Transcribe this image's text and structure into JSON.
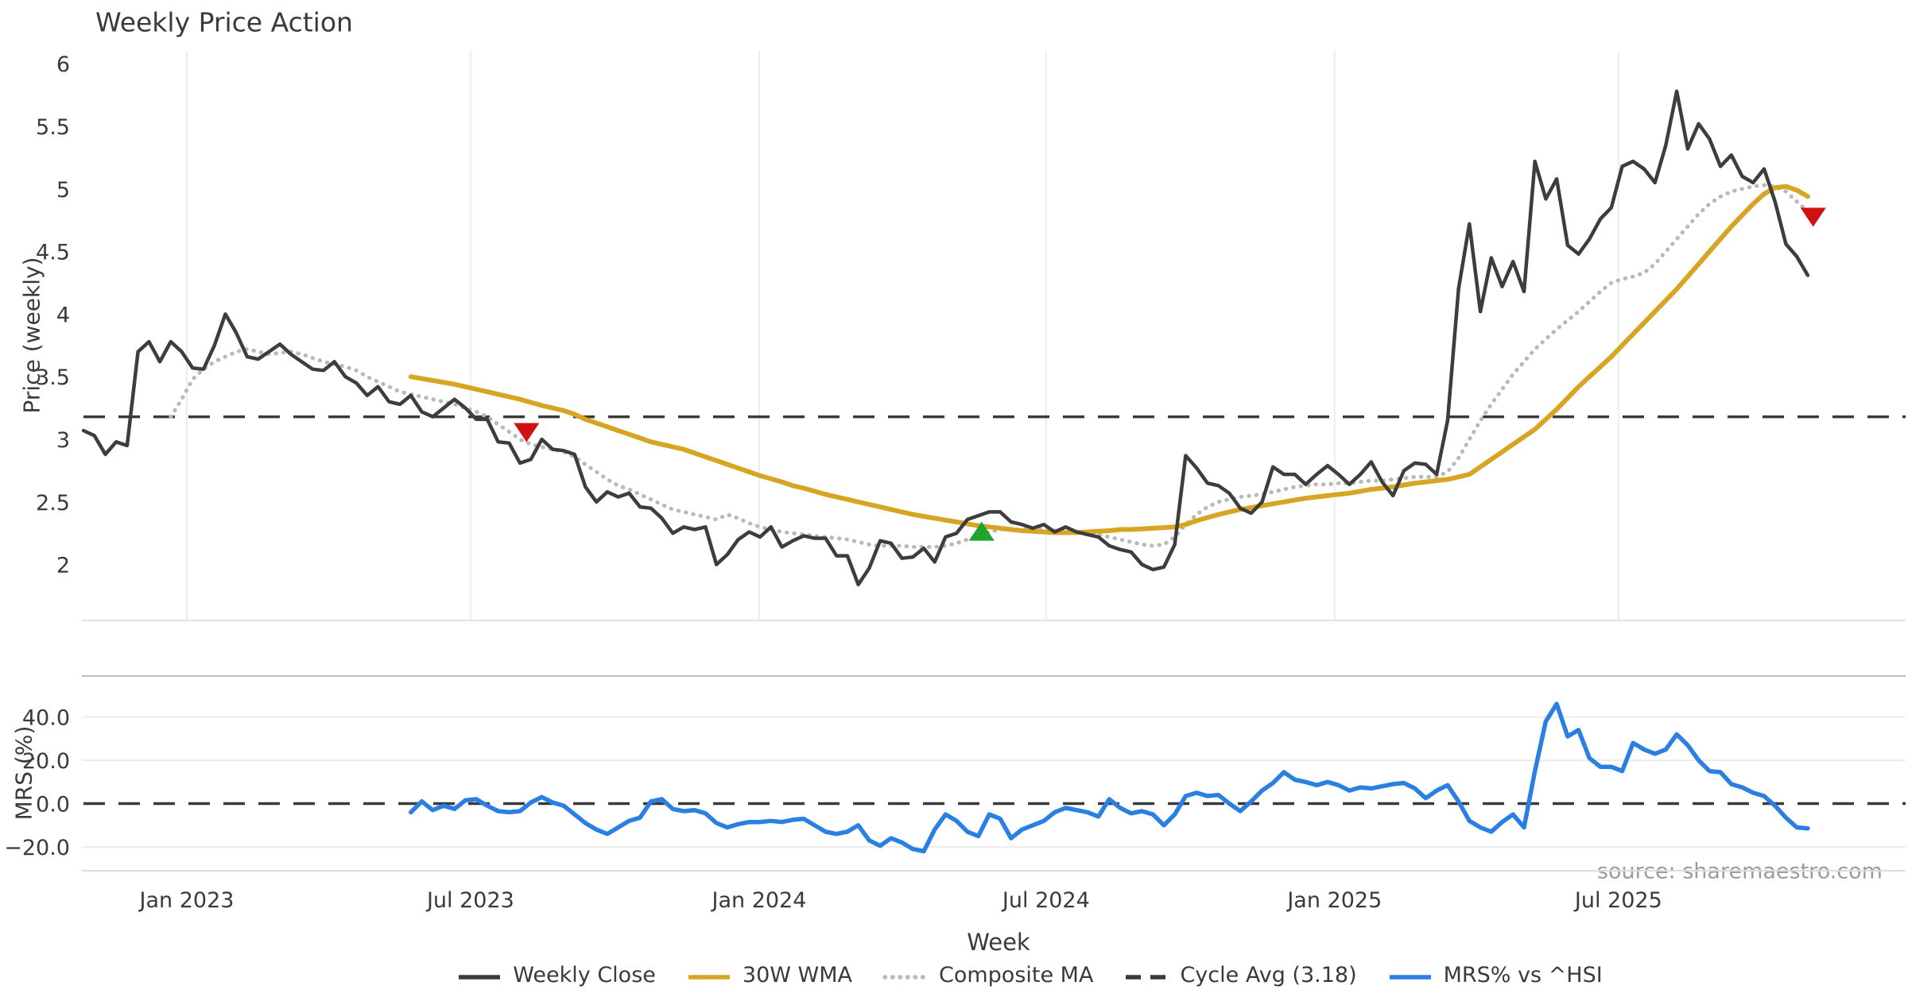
{
  "page": {
    "title": "Weekly Price Action"
  },
  "source": {
    "text": "source: sharemaestro.com"
  },
  "colors": {
    "weekly_close": "#3d3d3d",
    "wma": "#d7a521",
    "composite": "#b9b9b9",
    "cycle_avg": "#3a3a3a",
    "mrs": "#2a7fe3",
    "marker_red": "#cf1110",
    "marker_green": "#1fa32c",
    "grid": "#ededed",
    "panel_border": "#bdbdbd",
    "text": "#3a3a3a",
    "source_text": "#9b9b9b"
  },
  "legend": {
    "items": [
      {
        "label": "Weekly Close",
        "style": "solid",
        "color": "#3d3d3d"
      },
      {
        "label": "30W WMA",
        "style": "solid",
        "color": "#d7a521"
      },
      {
        "label": "Composite MA",
        "style": "dotted",
        "color": "#b9b9b9"
      },
      {
        "label": "Cycle Avg (3.18)",
        "style": "dashed",
        "color": "#3a3a3a"
      },
      {
        "label": "MRS% vs ^HSI",
        "style": "solid",
        "color": "#2a7fe3"
      }
    ]
  },
  "chart_data": [
    {
      "type": "line",
      "panel": "price",
      "title": "Weekly Price Action",
      "ylabel": "Price (weekly)",
      "xlabel": "Week",
      "ylim": [
        1.55,
        6.1
      ],
      "grid": "vertical",
      "x_ticks": [
        {
          "week": 9.47,
          "label": "Jan 2023"
        },
        {
          "week": 35.47,
          "label": "Jul 2023"
        },
        {
          "week": 61.92,
          "label": "Jan 2024"
        },
        {
          "week": 88.21,
          "label": "Jul 2024"
        },
        {
          "week": 114.65,
          "label": "Jan 2025"
        },
        {
          "week": 140.66,
          "label": "Jul 2025"
        }
      ],
      "y_ticks": [
        {
          "v": 6,
          "label": "6"
        },
        {
          "v": 5.5,
          "label": "5.5"
        },
        {
          "v": 5,
          "label": "5"
        },
        {
          "v": 4.5,
          "label": "4.5"
        },
        {
          "v": 4,
          "label": "4"
        },
        {
          "v": 3.5,
          "label": "3.5"
        },
        {
          "v": 3,
          "label": "3"
        },
        {
          "v": 2.5,
          "label": "2.5"
        },
        {
          "v": 2,
          "label": "2"
        }
      ],
      "cycle_avg": 3.18,
      "series": [
        {
          "name": "Weekly Close",
          "color": "#3d3d3d",
          "style": "solid",
          "width": 4.5,
          "start_week": 0,
          "values": [
            3.07,
            3.03,
            2.88,
            2.98,
            2.95,
            3.7,
            3.78,
            3.62,
            3.78,
            3.7,
            3.57,
            3.56,
            3.75,
            4.0,
            3.85,
            3.66,
            3.64,
            3.7,
            3.76,
            3.68,
            3.62,
            3.56,
            3.55,
            3.62,
            3.5,
            3.45,
            3.35,
            3.42,
            3.3,
            3.28,
            3.35,
            3.22,
            3.18,
            3.25,
            3.32,
            3.25,
            3.16,
            3.16,
            2.98,
            2.97,
            2.81,
            2.84,
            3.0,
            2.92,
            2.91,
            2.88,
            2.62,
            2.5,
            2.58,
            2.54,
            2.57,
            2.46,
            2.45,
            2.37,
            2.25,
            2.3,
            2.28,
            2.3,
            2.0,
            2.08,
            2.2,
            2.26,
            2.22,
            2.3,
            2.14,
            2.19,
            2.23,
            2.21,
            2.21,
            2.07,
            2.07,
            1.84,
            1.97,
            2.19,
            2.17,
            2.05,
            2.06,
            2.13,
            2.02,
            2.22,
            2.25,
            2.36,
            2.39,
            2.42,
            2.42,
            2.34,
            2.32,
            2.29,
            2.32,
            2.26,
            2.3,
            2.26,
            2.24,
            2.22,
            2.15,
            2.12,
            2.1,
            2.0,
            1.96,
            1.98,
            2.16,
            2.87,
            2.77,
            2.65,
            2.63,
            2.57,
            2.45,
            2.41,
            2.5,
            2.78,
            2.72,
            2.72,
            2.64,
            2.72,
            2.79,
            2.72,
            2.64,
            2.72,
            2.82,
            2.66,
            2.55,
            2.75,
            2.81,
            2.8,
            2.72,
            3.15,
            4.2,
            4.72,
            4.02,
            4.45,
            4.22,
            4.42,
            4.18,
            5.22,
            4.92,
            5.08,
            4.55,
            4.48,
            4.6,
            4.76,
            4.85,
            5.18,
            5.22,
            5.16,
            5.05,
            5.35,
            5.78,
            5.32,
            5.52,
            5.4,
            5.18,
            5.27,
            5.1,
            5.05,
            5.16,
            4.9,
            4.56,
            4.46,
            4.31
          ]
        },
        {
          "name": "30W WMA",
          "color": "#d7a521",
          "style": "solid",
          "width": 6,
          "start_week": 30,
          "values": [
            3.5,
            3.485,
            3.47,
            3.455,
            3.44,
            3.42,
            3.4,
            3.38,
            3.36,
            3.34,
            3.32,
            3.295,
            3.27,
            3.25,
            3.23,
            3.2,
            3.16,
            3.13,
            3.1,
            3.07,
            3.04,
            3.01,
            2.98,
            2.96,
            2.94,
            2.92,
            2.89,
            2.86,
            2.83,
            2.8,
            2.77,
            2.74,
            2.71,
            2.685,
            2.66,
            2.63,
            2.61,
            2.585,
            2.56,
            2.54,
            2.52,
            2.5,
            2.48,
            2.46,
            2.44,
            2.42,
            2.4,
            2.385,
            2.37,
            2.355,
            2.34,
            2.325,
            2.31,
            2.3,
            2.29,
            2.28,
            2.27,
            2.265,
            2.26,
            2.255,
            2.255,
            2.255,
            2.26,
            2.265,
            2.27,
            2.28,
            2.28,
            2.285,
            2.29,
            2.295,
            2.3,
            2.32,
            2.35,
            2.375,
            2.4,
            2.42,
            2.44,
            2.455,
            2.47,
            2.485,
            2.5,
            2.515,
            2.53,
            2.54,
            2.55,
            2.56,
            2.57,
            2.585,
            2.6,
            2.61,
            2.62,
            2.635,
            2.65,
            2.66,
            2.67,
            2.68,
            2.7,
            2.72,
            2.78,
            2.84,
            2.9,
            2.96,
            3.02,
            3.08,
            3.16,
            3.24,
            3.33,
            3.42,
            3.5,
            3.58,
            3.66,
            3.75,
            3.84,
            3.93,
            4.02,
            4.11,
            4.2,
            4.3,
            4.4,
            4.5,
            4.6,
            4.7,
            4.79,
            4.88,
            4.96,
            5.01,
            5.02,
            4.99,
            4.94
          ]
        },
        {
          "name": "Composite MA",
          "color": "#b9b9b9",
          "style": "dotted",
          "width": 5,
          "start_week": 8,
          "values": [
            3.18,
            3.32,
            3.48,
            3.56,
            3.62,
            3.66,
            3.7,
            3.72,
            3.7,
            3.68,
            3.69,
            3.7,
            3.68,
            3.65,
            3.62,
            3.6,
            3.58,
            3.55,
            3.5,
            3.46,
            3.42,
            3.38,
            3.36,
            3.34,
            3.32,
            3.3,
            3.28,
            3.25,
            3.22,
            3.18,
            3.12,
            3.06,
            3.0,
            2.96,
            2.94,
            2.92,
            2.9,
            2.86,
            2.8,
            2.74,
            2.68,
            2.63,
            2.6,
            2.56,
            2.52,
            2.48,
            2.44,
            2.42,
            2.4,
            2.38,
            2.36,
            2.4,
            2.37,
            2.33,
            2.3,
            2.28,
            2.26,
            2.25,
            2.24,
            2.23,
            2.22,
            2.21,
            2.2,
            2.18,
            2.16,
            2.15,
            2.15,
            2.15,
            2.14,
            2.14,
            2.14,
            2.15,
            2.17,
            2.2,
            2.23,
            2.26,
            2.28,
            2.28,
            2.28,
            2.28,
            2.28,
            2.27,
            2.27,
            2.26,
            2.25,
            2.24,
            2.22,
            2.2,
            2.18,
            2.16,
            2.15,
            2.16,
            2.22,
            2.32,
            2.4,
            2.46,
            2.5,
            2.52,
            2.54,
            2.55,
            2.56,
            2.58,
            2.6,
            2.62,
            2.63,
            2.64,
            2.64,
            2.65,
            2.65,
            2.66,
            2.67,
            2.67,
            2.68,
            2.69,
            2.7,
            2.7,
            2.7,
            2.74,
            2.85,
            3.0,
            3.15,
            3.28,
            3.4,
            3.52,
            3.62,
            3.72,
            3.8,
            3.88,
            3.95,
            4.02,
            4.1,
            4.18,
            4.25,
            4.28,
            4.3,
            4.33,
            4.4,
            4.5,
            4.6,
            4.7,
            4.8,
            4.88,
            4.94,
            4.98,
            5.0,
            5.02,
            5.03,
            5.02,
            4.98,
            4.9,
            4.82
          ]
        },
        {
          "name": "Cycle Avg (3.18)",
          "color": "#3a3a3a",
          "style": "dashed",
          "width": 3.6,
          "value": 3.18
        }
      ],
      "markers": [
        {
          "shape": "triangle-down",
          "color": "#cf1110",
          "week": 40.6,
          "price": 3.06
        },
        {
          "shape": "triangle-up",
          "color": "#1fa32c",
          "week": 82.3,
          "price": 2.26
        },
        {
          "shape": "triangle-down",
          "color": "#cf1110",
          "week": 158.5,
          "price": 4.78
        }
      ]
    },
    {
      "type": "line",
      "panel": "mrs",
      "ylabel": "MRS (%)",
      "ylim": [
        -31,
        59
      ],
      "grid": "horizontal",
      "zero_line": 0.0,
      "y_ticks": [
        {
          "v": 40,
          "label": "40.0"
        },
        {
          "v": 20,
          "label": "20.0"
        },
        {
          "v": 0,
          "label": "0.0"
        },
        {
          "v": -20,
          "label": "−20.0"
        }
      ],
      "series": [
        {
          "name": "MRS% vs ^HSI",
          "color": "#2a7fe3",
          "style": "solid",
          "width": 5.5,
          "start_week": 30,
          "values": [
            -4,
            1,
            -3,
            -1,
            -2.5,
            1.5,
            2,
            -1,
            -3.5,
            -4,
            -3.5,
            0.5,
            3,
            0.5,
            -1,
            -5,
            -9,
            -12,
            -14,
            -11,
            -8,
            -6.5,
            1,
            2,
            -2.5,
            -3.5,
            -3,
            -4.5,
            -9,
            -11,
            -9.5,
            -8.5,
            -8.5,
            -8,
            -8.5,
            -7.5,
            -7,
            -10,
            -13,
            -14,
            -13,
            -10,
            -17,
            -19.5,
            -16,
            -18,
            -21,
            -22,
            -12,
            -5,
            -8,
            -13,
            -15,
            -5,
            -7,
            -16,
            -12,
            -10,
            -8,
            -4,
            -2,
            -3,
            -4,
            -6,
            2,
            -2,
            -4.5,
            -3.5,
            -5,
            -10,
            -5,
            3.5,
            5,
            3.5,
            4,
            0,
            -3.5,
            1,
            6,
            9.5,
            14.5,
            11,
            10,
            8.5,
            10,
            8.5,
            6,
            7.5,
            7,
            8,
            9,
            9.5,
            7,
            2.5,
            6,
            8.5,
            1,
            -8,
            -11,
            -13,
            -8.5,
            -5,
            -11,
            15,
            38,
            46,
            31,
            34,
            21,
            17,
            17,
            15,
            28,
            25,
            23,
            25,
            32,
            27,
            20,
            15,
            14.5,
            9,
            7.5,
            5,
            3.5,
            -1,
            -6.5,
            -11,
            -11.5
          ]
        }
      ]
    }
  ]
}
